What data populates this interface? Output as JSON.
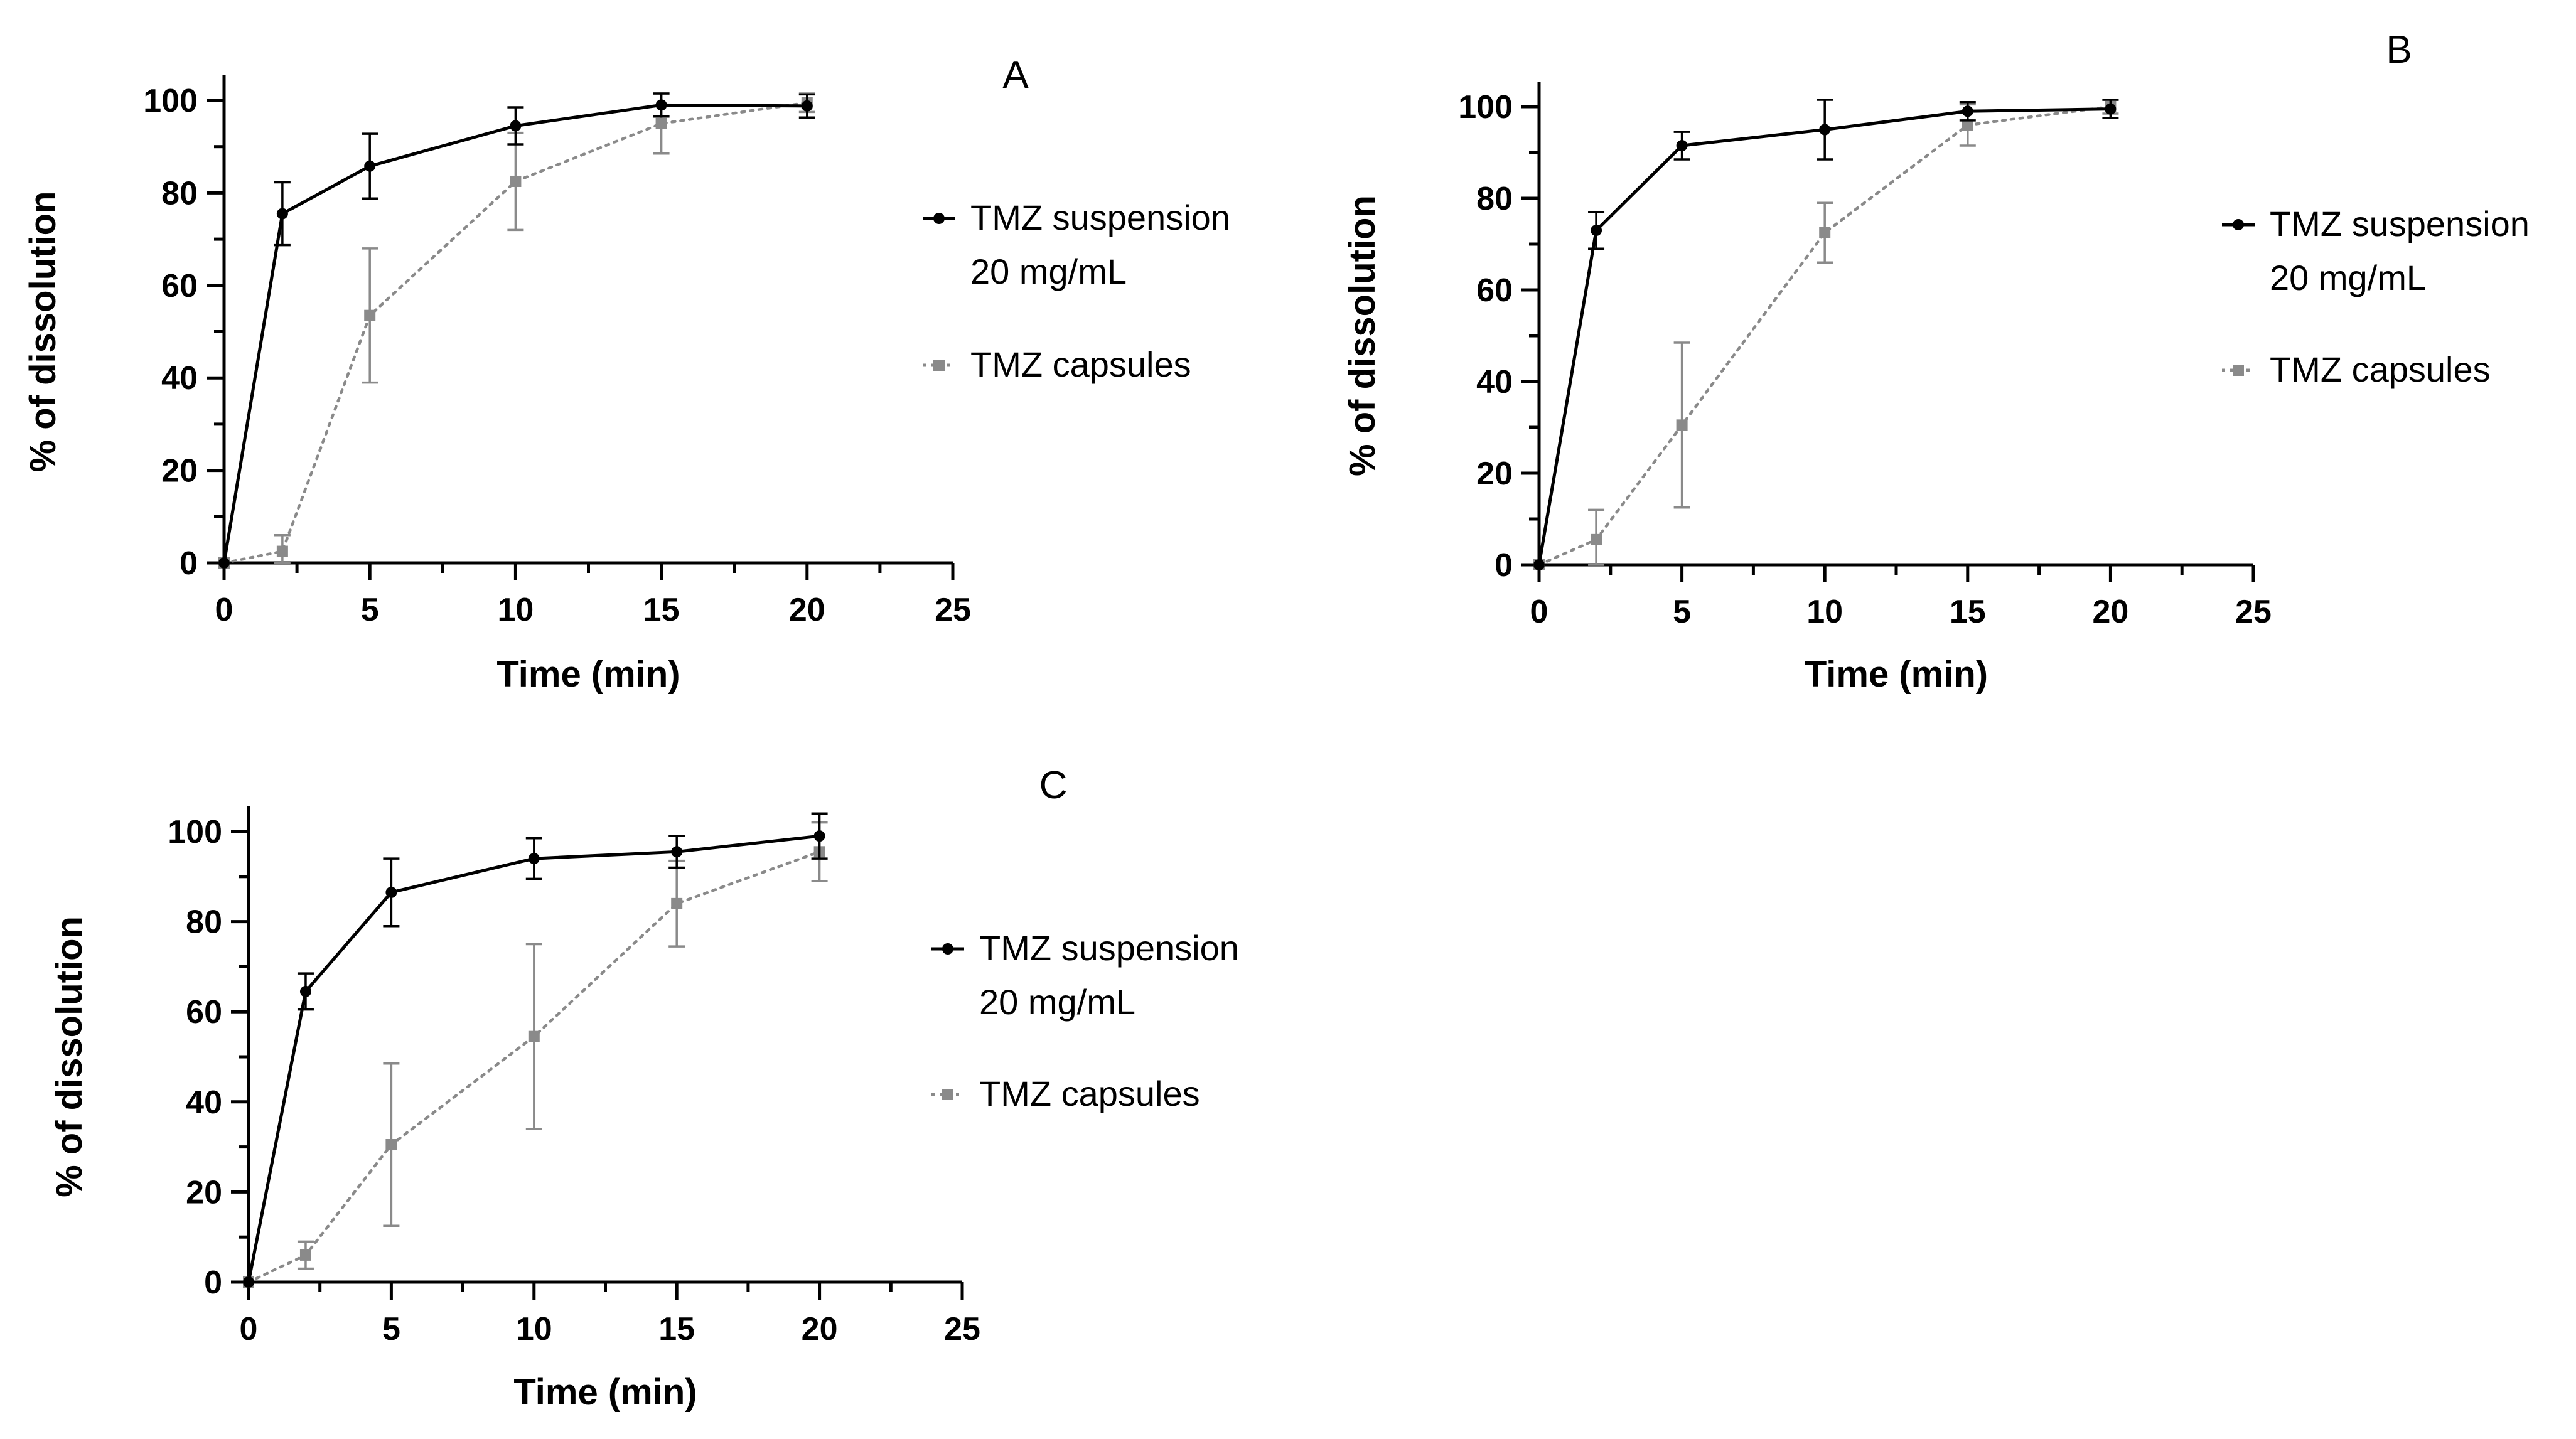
{
  "colors": {
    "suspension": "#000000",
    "capsules": "#8a8a8a"
  },
  "chart_data": [
    {
      "type": "line",
      "panel_label": "A",
      "xlabel": "Time (min)",
      "ylabel": "% of dissolution",
      "xlim": [
        0,
        25
      ],
      "ylim": [
        0,
        100
      ],
      "xticks": [
        0,
        5,
        10,
        15,
        20,
        25
      ],
      "yticks": [
        0,
        20,
        40,
        60,
        80,
        100
      ],
      "grid": false,
      "legend_position": "right",
      "series": [
        {
          "name": "TMZ suspension",
          "name_line2": "20 mg/mL",
          "style": "solid",
          "marker": "circle",
          "x": [
            0,
            2,
            5,
            10,
            15,
            20
          ],
          "y": [
            0,
            75.5,
            85.8,
            94.5,
            99,
            98.8
          ],
          "err": [
            0,
            6.8,
            7,
            4,
            2.5,
            2.5
          ]
        },
        {
          "name": "TMZ capsules",
          "style": "dotted",
          "marker": "square",
          "x": [
            0,
            2,
            5,
            10,
            15,
            20
          ],
          "y": [
            0,
            2.5,
            53.5,
            82.5,
            95,
            99.5
          ],
          "err": [
            0,
            3.5,
            14.5,
            10.5,
            6.5,
            2
          ]
        }
      ]
    },
    {
      "type": "line",
      "panel_label": "B",
      "xlabel": "Time (min)",
      "ylabel": "% of dissolution",
      "xlim": [
        0,
        25
      ],
      "ylim": [
        0,
        100
      ],
      "xticks": [
        0,
        5,
        10,
        15,
        20,
        25
      ],
      "yticks": [
        0,
        20,
        40,
        60,
        80,
        100
      ],
      "grid": false,
      "legend_position": "right",
      "series": [
        {
          "name": "TMZ suspension",
          "name_line2": "20 mg/mL",
          "style": "solid",
          "marker": "circle",
          "x": [
            0,
            2,
            5,
            10,
            15,
            20
          ],
          "y": [
            0,
            73,
            91.5,
            95,
            99,
            99.5
          ],
          "err": [
            0,
            4,
            3,
            6.5,
            2,
            2
          ]
        },
        {
          "name": "TMZ capsules",
          "style": "dotted",
          "marker": "square",
          "x": [
            0,
            2,
            5,
            10,
            15,
            20
          ],
          "y": [
            0,
            5.5,
            30.5,
            72.5,
            96,
            100
          ],
          "err": [
            0,
            6.5,
            18,
            6.5,
            4.5,
            1.5
          ]
        }
      ]
    },
    {
      "type": "line",
      "panel_label": "C",
      "xlabel": "Time (min)",
      "ylabel": "% of dissolution",
      "xlim": [
        0,
        25
      ],
      "ylim": [
        0,
        100
      ],
      "xticks": [
        0,
        5,
        10,
        15,
        20,
        25
      ],
      "yticks": [
        0,
        20,
        40,
        60,
        80,
        100
      ],
      "grid": false,
      "legend_position": "right",
      "series": [
        {
          "name": "TMZ suspension",
          "name_line2": "20 mg/mL",
          "style": "solid",
          "marker": "circle",
          "x": [
            0,
            2,
            5,
            10,
            15,
            20
          ],
          "y": [
            0,
            64.5,
            86.5,
            94,
            95.5,
            99
          ],
          "err": [
            0,
            4,
            7.5,
            4.5,
            3.5,
            5
          ]
        },
        {
          "name": "TMZ capsules",
          "style": "dotted",
          "marker": "square",
          "x": [
            0,
            2,
            5,
            10,
            15,
            20
          ],
          "y": [
            0,
            6,
            30.5,
            54.5,
            84,
            95.5
          ],
          "err": [
            0,
            3,
            18,
            20.5,
            9.5,
            6.5
          ]
        }
      ]
    }
  ]
}
